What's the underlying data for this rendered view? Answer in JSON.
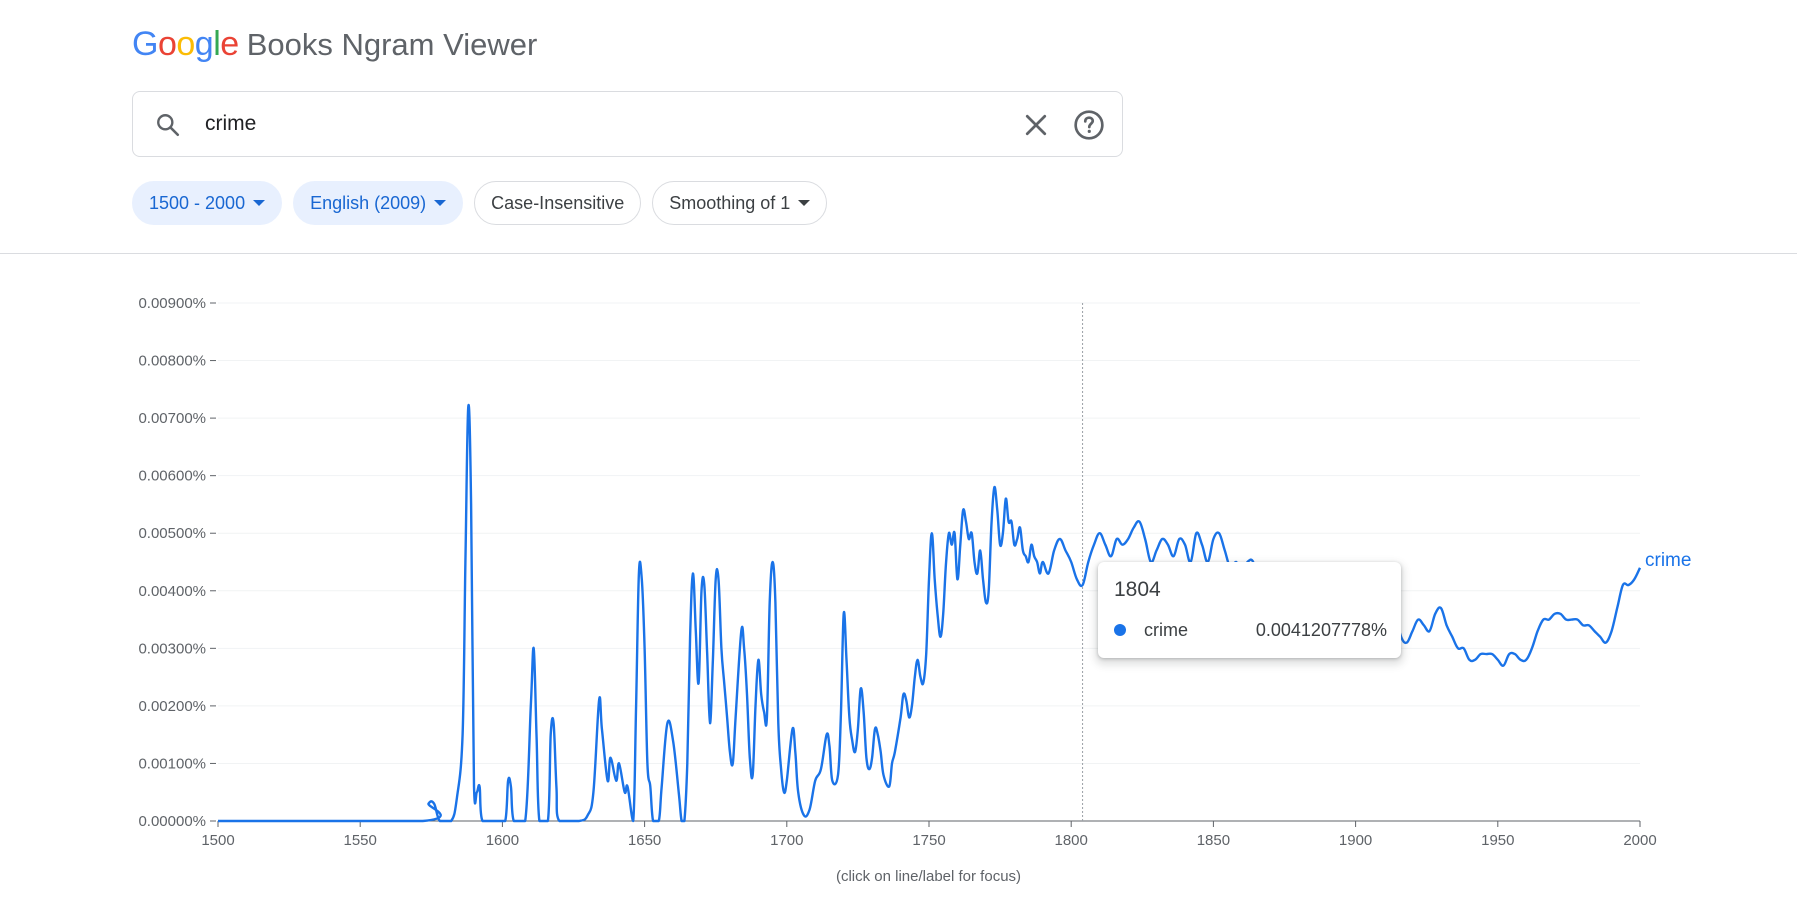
{
  "header": {
    "logo_letters": [
      {
        "char": "G",
        "color": "#4285F4"
      },
      {
        "char": "o",
        "color": "#EA4335"
      },
      {
        "char": "o",
        "color": "#FBBC05"
      },
      {
        "char": "g",
        "color": "#4285F4"
      },
      {
        "char": "l",
        "color": "#34A853"
      },
      {
        "char": "e",
        "color": "#EA4335"
      }
    ],
    "title": "Books Ngram Viewer"
  },
  "search": {
    "value": "crime",
    "icons": {
      "search": "search-icon",
      "clear": "close-icon",
      "help": "help-icon"
    }
  },
  "filters": {
    "year_range": "1500 - 2000",
    "corpus": "English (2009)",
    "case": "Case-Insensitive",
    "smoothing": "Smoothing of 1"
  },
  "tooltip": {
    "year": "1804",
    "series_name": "crime",
    "value": "0.0041207778%",
    "color": "#1a73e8"
  },
  "caption": "(click on line/label for focus)",
  "chart_data": {
    "type": "line",
    "xlim": [
      1500,
      2000
    ],
    "ylim": [
      0,
      0.009
    ],
    "x_ticks": [
      "1500",
      "1550",
      "1600",
      "1650",
      "1700",
      "1750",
      "1800",
      "1850",
      "1900",
      "1950",
      "2000"
    ],
    "y_ticks": [
      "0.00000%",
      "0.00100%",
      "0.00200%",
      "0.00300%",
      "0.00400%",
      "0.00500%",
      "0.00600%",
      "0.00700%",
      "0.00800%",
      "0.00900%"
    ],
    "grid": true,
    "hover_x": 1804,
    "series": [
      {
        "name": "crime",
        "color": "#1a73e8",
        "points": [
          [
            1500,
            0
          ],
          [
            1572,
            0
          ],
          [
            1574,
            0.0003
          ],
          [
            1576,
            0.0003
          ],
          [
            1578,
            0
          ],
          [
            1582,
            0
          ],
          [
            1584,
            0.0004
          ],
          [
            1586,
            0.0015
          ],
          [
            1587,
            0.0045
          ],
          [
            1588,
            0.0072
          ],
          [
            1589,
            0.0055
          ],
          [
            1590,
            0.0006
          ],
          [
            1591,
            0.0005
          ],
          [
            1592,
            0.0006
          ],
          [
            1593,
            0
          ],
          [
            1598,
            0
          ],
          [
            1601,
            0
          ],
          [
            1602,
            0.0007
          ],
          [
            1603,
            0.0006
          ],
          [
            1604,
            0
          ],
          [
            1608,
            0
          ],
          [
            1610,
            0.002
          ],
          [
            1611,
            0.003
          ],
          [
            1612,
            0.0015
          ],
          [
            1613,
            0
          ],
          [
            1616,
            0
          ],
          [
            1617,
            0.0015
          ],
          [
            1618,
            0.0017
          ],
          [
            1619,
            0.0006
          ],
          [
            1620,
            0
          ],
          [
            1627,
            0
          ],
          [
            1630,
            0.0001
          ],
          [
            1632,
            0.0005
          ],
          [
            1634,
            0.0021
          ],
          [
            1635,
            0.0016
          ],
          [
            1637,
            0.0007
          ],
          [
            1638,
            0.0011
          ],
          [
            1640,
            0.0007
          ],
          [
            1641,
            0.001
          ],
          [
            1643,
            0.0005
          ],
          [
            1644,
            0.0006
          ],
          [
            1646,
            0
          ],
          [
            1647,
            0.002
          ],
          [
            1648,
            0.0043
          ],
          [
            1649,
            0.0042
          ],
          [
            1650,
            0.003
          ],
          [
            1651,
            0.001
          ],
          [
            1652,
            0.0006
          ],
          [
            1653,
            0
          ],
          [
            1655,
            0
          ],
          [
            1656,
            0.0006
          ],
          [
            1658,
            0.0017
          ],
          [
            1660,
            0.0014
          ],
          [
            1662,
            0.0005
          ],
          [
            1663,
            0
          ],
          [
            1664,
            0
          ],
          [
            1665,
            0.001
          ],
          [
            1666,
            0.0032
          ],
          [
            1667,
            0.0043
          ],
          [
            1668,
            0.0033
          ],
          [
            1669,
            0.0024
          ],
          [
            1670,
            0.004
          ],
          [
            1671,
            0.0041
          ],
          [
            1672,
            0.0029
          ],
          [
            1673,
            0.0017
          ],
          [
            1674,
            0.0028
          ],
          [
            1675,
            0.0042
          ],
          [
            1676,
            0.0042
          ],
          [
            1677,
            0.003
          ],
          [
            1678,
            0.0024
          ],
          [
            1679,
            0.0018
          ],
          [
            1680,
            0.0012
          ],
          [
            1681,
            0.001
          ],
          [
            1682,
            0.0018
          ],
          [
            1684,
            0.0033
          ],
          [
            1685,
            0.003
          ],
          [
            1686,
            0.0022
          ],
          [
            1687,
            0.0011
          ],
          [
            1688,
            0.0008
          ],
          [
            1689,
            0.002
          ],
          [
            1690,
            0.0028
          ],
          [
            1691,
            0.0022
          ],
          [
            1692,
            0.0019
          ],
          [
            1693,
            0.0018
          ],
          [
            1694,
            0.0038
          ],
          [
            1695,
            0.0045
          ],
          [
            1696,
            0.0038
          ],
          [
            1697,
            0.0017
          ],
          [
            1698,
            0.0009
          ],
          [
            1699,
            0.0005
          ],
          [
            1700,
            0.0007
          ],
          [
            1702,
            0.0016
          ],
          [
            1703,
            0.0012
          ],
          [
            1704,
            0.0005
          ],
          [
            1706,
            0.0001
          ],
          [
            1708,
            0.0002
          ],
          [
            1710,
            0.0007
          ],
          [
            1712,
            0.0009
          ],
          [
            1714,
            0.0015
          ],
          [
            1715,
            0.0013
          ],
          [
            1716,
            0.0007
          ],
          [
            1718,
            0.0008
          ],
          [
            1719,
            0.0018
          ],
          [
            1720,
            0.0036
          ],
          [
            1721,
            0.0028
          ],
          [
            1722,
            0.0018
          ],
          [
            1723,
            0.0014
          ],
          [
            1724,
            0.0012
          ],
          [
            1725,
            0.0016
          ],
          [
            1726,
            0.0023
          ],
          [
            1727,
            0.0019
          ],
          [
            1728,
            0.0011
          ],
          [
            1729,
            0.0009
          ],
          [
            1730,
            0.0011
          ],
          [
            1731,
            0.0016
          ],
          [
            1732,
            0.0015
          ],
          [
            1733,
            0.0012
          ],
          [
            1734,
            0.0008
          ],
          [
            1736,
            0.0006
          ],
          [
            1737,
            0.001
          ],
          [
            1738,
            0.0012
          ],
          [
            1740,
            0.0018
          ],
          [
            1741,
            0.0022
          ],
          [
            1742,
            0.0021
          ],
          [
            1743,
            0.0018
          ],
          [
            1744,
            0.002
          ],
          [
            1745,
            0.0025
          ],
          [
            1746,
            0.0028
          ],
          [
            1747,
            0.0025
          ],
          [
            1748,
            0.0024
          ],
          [
            1749,
            0.0029
          ],
          [
            1750,
            0.0042
          ],
          [
            1751,
            0.005
          ],
          [
            1752,
            0.0042
          ],
          [
            1753,
            0.0036
          ],
          [
            1754,
            0.0032
          ],
          [
            1755,
            0.0036
          ],
          [
            1756,
            0.0045
          ],
          [
            1757,
            0.005
          ],
          [
            1758,
            0.0048
          ],
          [
            1759,
            0.005
          ],
          [
            1760,
            0.0042
          ],
          [
            1761,
            0.0048
          ],
          [
            1762,
            0.0054
          ],
          [
            1763,
            0.0052
          ],
          [
            1764,
            0.0049
          ],
          [
            1765,
            0.005
          ],
          [
            1766,
            0.0045
          ],
          [
            1767,
            0.0043
          ],
          [
            1768,
            0.0047
          ],
          [
            1769,
            0.0042
          ],
          [
            1770,
            0.0038
          ],
          [
            1771,
            0.004
          ],
          [
            1772,
            0.0052
          ],
          [
            1773,
            0.0058
          ],
          [
            1774,
            0.0054
          ],
          [
            1775,
            0.0048
          ],
          [
            1776,
            0.005
          ],
          [
            1777,
            0.0056
          ],
          [
            1778,
            0.0052
          ],
          [
            1779,
            0.0052
          ],
          [
            1780,
            0.0048
          ],
          [
            1781,
            0.0049
          ],
          [
            1782,
            0.0051
          ],
          [
            1783,
            0.0047
          ],
          [
            1784,
            0.0046
          ],
          [
            1785,
            0.0045
          ],
          [
            1786,
            0.0048
          ],
          [
            1787,
            0.0046
          ],
          [
            1788,
            0.0045
          ],
          [
            1789,
            0.0043
          ],
          [
            1790,
            0.0045
          ],
          [
            1792,
            0.0043
          ],
          [
            1794,
            0.0047
          ],
          [
            1796,
            0.0049
          ],
          [
            1798,
            0.0047
          ],
          [
            1800,
            0.0045
          ],
          [
            1802,
            0.0042
          ],
          [
            1804,
            0.0041
          ],
          [
            1806,
            0.0045
          ],
          [
            1808,
            0.0048
          ],
          [
            1810,
            0.005
          ],
          [
            1812,
            0.0048
          ],
          [
            1814,
            0.0046
          ],
          [
            1816,
            0.0049
          ],
          [
            1818,
            0.0048
          ],
          [
            1820,
            0.0049
          ],
          [
            1822,
            0.0051
          ],
          [
            1824,
            0.0052
          ],
          [
            1826,
            0.0049
          ],
          [
            1828,
            0.0045
          ],
          [
            1830,
            0.0047
          ],
          [
            1832,
            0.0049
          ],
          [
            1834,
            0.0048
          ],
          [
            1836,
            0.0046
          ],
          [
            1838,
            0.0049
          ],
          [
            1840,
            0.0048
          ],
          [
            1842,
            0.0045
          ],
          [
            1844,
            0.005
          ],
          [
            1846,
            0.0048
          ],
          [
            1848,
            0.0045
          ],
          [
            1850,
            0.0049
          ],
          [
            1852,
            0.005
          ],
          [
            1854,
            0.0047
          ],
          [
            1856,
            0.0044
          ],
          [
            1858,
            0.0045
          ],
          [
            1860,
            0.0043
          ],
          [
            1862,
            0.0045
          ],
          [
            1864,
            0.0045
          ],
          [
            1866,
            0.0041
          ],
          [
            1868,
            0.0043
          ],
          [
            1870,
            0.004
          ],
          [
            1872,
            0.0042
          ],
          [
            1874,
            0.0039
          ],
          [
            1876,
            0.0041
          ],
          [
            1878,
            0.0038
          ],
          [
            1880,
            0.004
          ],
          [
            1882,
            0.0037
          ],
          [
            1884,
            0.0039
          ],
          [
            1886,
            0.0036
          ],
          [
            1888,
            0.0038
          ],
          [
            1890,
            0.0036
          ],
          [
            1892,
            0.0038
          ],
          [
            1894,
            0.0035
          ],
          [
            1896,
            0.0037
          ],
          [
            1898,
            0.0035
          ],
          [
            1900,
            0.0038
          ],
          [
            1902,
            0.0036
          ],
          [
            1904,
            0.0037
          ],
          [
            1906,
            0.0038
          ],
          [
            1908,
            0.0035
          ],
          [
            1910,
            0.0036
          ],
          [
            1912,
            0.004
          ],
          [
            1914,
            0.0036
          ],
          [
            1916,
            0.0032
          ],
          [
            1918,
            0.0031
          ],
          [
            1920,
            0.0033
          ],
          [
            1922,
            0.0035
          ],
          [
            1924,
            0.0034
          ],
          [
            1926,
            0.0033
          ],
          [
            1928,
            0.0036
          ],
          [
            1930,
            0.0037
          ],
          [
            1932,
            0.0034
          ],
          [
            1934,
            0.0032
          ],
          [
            1936,
            0.003
          ],
          [
            1938,
            0.003
          ],
          [
            1940,
            0.0028
          ],
          [
            1942,
            0.0028
          ],
          [
            1944,
            0.0029
          ],
          [
            1946,
            0.0029
          ],
          [
            1948,
            0.0029
          ],
          [
            1950,
            0.0028
          ],
          [
            1952,
            0.0027
          ],
          [
            1954,
            0.0029
          ],
          [
            1956,
            0.0029
          ],
          [
            1958,
            0.0028
          ],
          [
            1960,
            0.0028
          ],
          [
            1962,
            0.003
          ],
          [
            1964,
            0.0033
          ],
          [
            1966,
            0.0035
          ],
          [
            1968,
            0.0035
          ],
          [
            1970,
            0.0036
          ],
          [
            1972,
            0.0036
          ],
          [
            1974,
            0.0035
          ],
          [
            1976,
            0.0035
          ],
          [
            1978,
            0.0035
          ],
          [
            1980,
            0.0034
          ],
          [
            1982,
            0.0034
          ],
          [
            1984,
            0.0033
          ],
          [
            1986,
            0.0032
          ],
          [
            1988,
            0.0031
          ],
          [
            1990,
            0.0033
          ],
          [
            1992,
            0.0037
          ],
          [
            1994,
            0.0041
          ],
          [
            1996,
            0.0041
          ],
          [
            1998,
            0.0042
          ],
          [
            2000,
            0.0044
          ]
        ]
      }
    ]
  }
}
